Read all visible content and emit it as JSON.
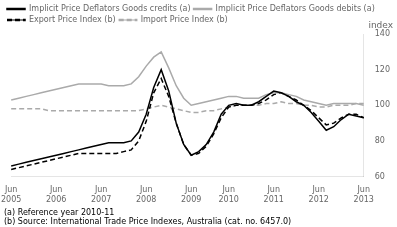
{
  "chart_data": {
    "type": "line",
    "ylabel": "index",
    "categories": [
      "Jun\n2005",
      null,
      null,
      null,
      null,
      null,
      "Jun\n2006",
      null,
      null,
      null,
      null,
      null,
      "Jun\n2007",
      null,
      null,
      null,
      null,
      null,
      "Jun\n2008",
      null,
      null,
      null,
      null,
      null,
      "Jun\n2009",
      null,
      null,
      null,
      null,
      "Jun\n2010",
      null,
      null,
      null,
      null,
      null,
      "Jun\n2011",
      null,
      null,
      null,
      null,
      null,
      "Jun\n2012",
      null,
      null,
      null,
      null,
      null,
      "Jun\n2013"
    ],
    "series": [
      {
        "name": "Implicit Price Deflators Goods credits (a)",
        "color": "#000000",
        "line_style": "solid",
        "values": [
          66,
          67,
          68,
          69,
          70,
          71,
          72,
          73,
          74,
          75,
          76,
          77,
          78,
          79,
          79,
          79,
          80,
          85,
          95,
          110,
          120,
          108,
          90,
          78,
          72,
          74,
          78,
          85,
          95,
          100,
          101,
          100,
          100,
          102,
          105,
          108,
          107,
          105,
          102,
          100,
          96,
          91,
          86,
          88,
          92,
          95,
          94,
          93
        ]
      },
      {
        "name": "Implicit Price Deflators Goods debits (a)",
        "color": "#aaaaaa",
        "line_style": "solid",
        "values": [
          103,
          104,
          105,
          106,
          107,
          108,
          109,
          110,
          111,
          112,
          112,
          112,
          112,
          111,
          111,
          111,
          112,
          116,
          122,
          127,
          130,
          121,
          111,
          104,
          100,
          101,
          102,
          103,
          104,
          105,
          105,
          104,
          104,
          104,
          106,
          107,
          107,
          106,
          105,
          103,
          102,
          101,
          100,
          101,
          101,
          101,
          101,
          100
        ]
      },
      {
        "name": "Export Price Index (b)",
        "color": "#000000",
        "line_style": "dashed",
        "values": [
          64,
          65,
          66,
          67,
          68,
          69,
          70,
          71,
          72,
          73,
          73,
          73,
          73,
          73,
          73,
          74,
          75,
          80,
          91,
          107,
          115,
          105,
          90,
          78,
          72,
          73,
          77,
          84,
          93,
          99,
          100,
          100,
          100,
          101,
          103,
          106,
          107,
          105,
          103,
          100,
          97,
          93,
          89,
          90,
          93,
          95,
          95,
          93
        ]
      },
      {
        "name": "Import Price Index (b)",
        "color": "#aaaaaa",
        "line_style": "dashed",
        "values": [
          98,
          98,
          98,
          98,
          98,
          97,
          97,
          97,
          97,
          97,
          97,
          97,
          97,
          97,
          97,
          97,
          97,
          97,
          98,
          99,
          100,
          99,
          98,
          97,
          96,
          96,
          97,
          97,
          98,
          99,
          100,
          100,
          100,
          100,
          101,
          101,
          102,
          101,
          101,
          100,
          100,
          99,
          99,
          100,
          100,
          100,
          101,
          101
        ]
      }
    ],
    "ylim": [
      60,
      140
    ],
    "yticks": [
      60,
      80,
      100,
      120,
      140
    ],
    "grid": false,
    "legend": "upper left",
    "annotations": [
      "(a) Reference year 2010-11",
      "(b) Source: International Trade Price Indexes, Australia (cat. no. 6457.0)"
    ]
  }
}
